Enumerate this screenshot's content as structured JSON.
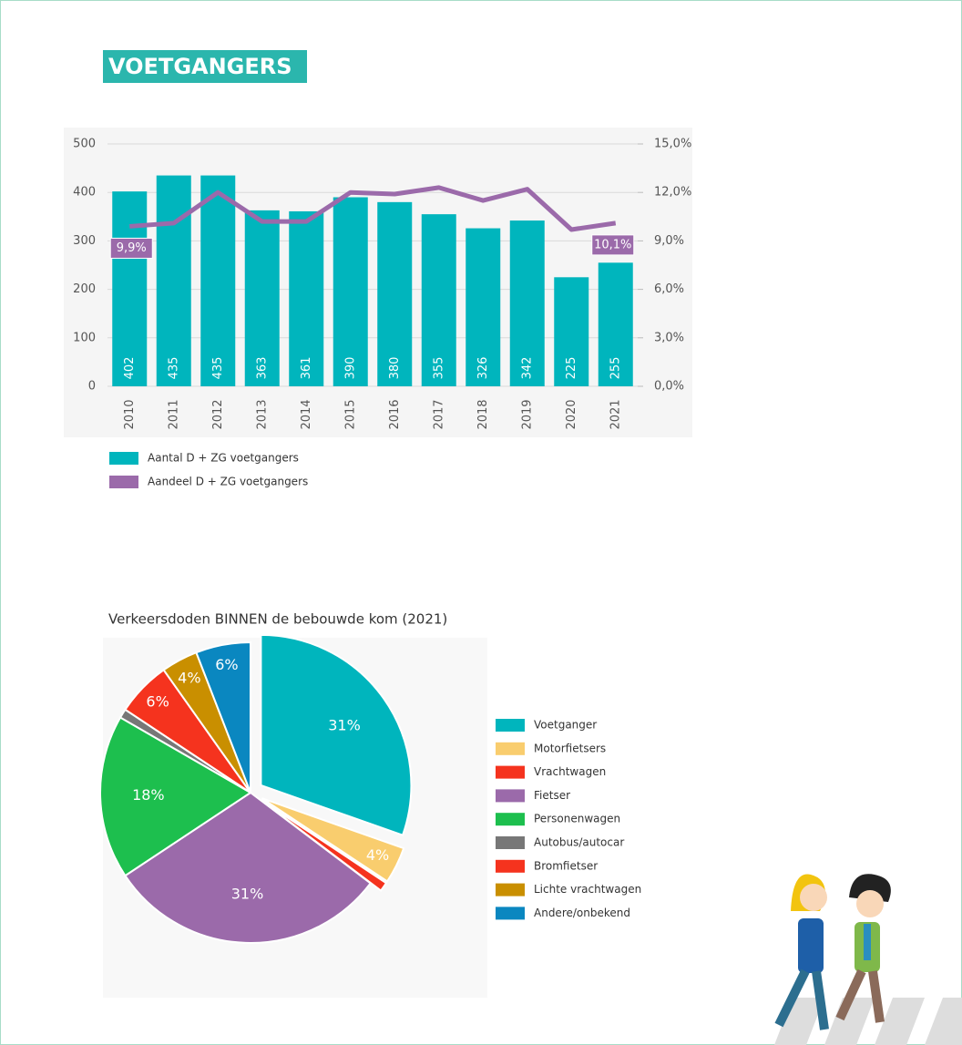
{
  "header": {
    "title": "VOETGANGERS"
  },
  "chart_data": [
    {
      "type": "bar",
      "categories": [
        "2010",
        "2011",
        "2012",
        "2013",
        "2014",
        "2015",
        "2016",
        "2017",
        "2018",
        "2019",
        "2020",
        "2021"
      ],
      "series": [
        {
          "name": "Aantal D + ZG voetgangers",
          "color": "#00b5bd",
          "values": [
            402,
            435,
            435,
            363,
            361,
            390,
            380,
            355,
            326,
            342,
            225,
            255
          ]
        },
        {
          "name": "Aandeel D + ZG voetgangers",
          "color": "#9b6aaa",
          "type": "line",
          "axis": "y2",
          "values": [
            9.9,
            10.1,
            12.0,
            10.2,
            10.2,
            12.0,
            11.9,
            12.3,
            11.5,
            12.2,
            9.7,
            10.1
          ],
          "value_labels": [
            "9,9%",
            null,
            null,
            null,
            null,
            null,
            null,
            null,
            null,
            null,
            null,
            "10,1%"
          ]
        }
      ],
      "ylim": [
        0,
        500
      ],
      "yticks": [
        0,
        100,
        200,
        300,
        400,
        500
      ],
      "y2lim": [
        0,
        15
      ],
      "y2ticks": [
        {
          "value": 0,
          "label": "0,0%"
        },
        {
          "value": 3,
          "label": "3,0%"
        },
        {
          "value": 6,
          "label": "6,0%"
        },
        {
          "value": 9,
          "label": "9,0%"
        },
        {
          "value": 12,
          "label": "12,0%"
        },
        {
          "value": 15,
          "label": "15,0%"
        }
      ],
      "grid": true
    },
    {
      "type": "pie",
      "title": "Verkeersdoden BINNEN de bebouwde kom (2021)",
      "categories": [
        "Voetganger",
        "Motorfietsers",
        "Vrachtwagen",
        "Fietser",
        "Personenwagen",
        "Autobus/autocar",
        "Bromfietser",
        "Lichte vrachtwagen",
        "Andere/onbekend"
      ],
      "values": [
        31,
        4,
        1,
        31,
        18,
        1,
        6,
        4,
        6
      ],
      "value_labels": [
        "31%",
        "4%",
        null,
        "31%",
        "18%",
        null,
        "6%",
        "4%",
        "6%"
      ],
      "colors": [
        "#00b5bd",
        "#f9cd6e",
        "#f5331e",
        "#9b6aaa",
        "#1dbf4e",
        "#777777",
        "#f5331e",
        "#c98f00",
        "#0a87c0"
      ]
    }
  ]
}
